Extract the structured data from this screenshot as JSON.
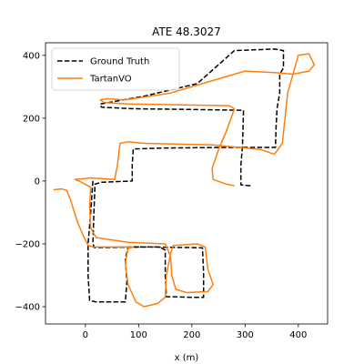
{
  "chart_data": {
    "type": "line",
    "title": "ATE 48.3027",
    "xlabel": "x (m)",
    "ylabel": "",
    "xlim": [
      -75,
      455
    ],
    "ylim": [
      -455,
      440
    ],
    "xticks": [
      0,
      100,
      200,
      300,
      400
    ],
    "yticks": [
      -400,
      -200,
      0,
      200,
      400
    ],
    "grid": false,
    "legend_position": "top-left",
    "series": [
      {
        "name": "Ground Truth",
        "color": "#000000",
        "style": "dashed",
        "points": [
          [
            310,
            -15
          ],
          [
            292,
            -12
          ],
          [
            292,
            50
          ],
          [
            295,
            110
          ],
          [
            296,
            160
          ],
          [
            297,
            225
          ],
          [
            190,
            228
          ],
          [
            90,
            230
          ],
          [
            30,
            235
          ],
          [
            28,
            245
          ],
          [
            110,
            270
          ],
          [
            210,
            310
          ],
          [
            280,
            415
          ],
          [
            355,
            420
          ],
          [
            372,
            415
          ],
          [
            372,
            360
          ],
          [
            365,
            340
          ],
          [
            365,
            280
          ],
          [
            360,
            230
          ],
          [
            358,
            165
          ],
          [
            357,
            107
          ],
          [
            260,
            107
          ],
          [
            145,
            105
          ],
          [
            90,
            102
          ],
          [
            88,
            52
          ],
          [
            88,
            0
          ],
          [
            30,
            -4
          ],
          [
            18,
            -10
          ],
          [
            16,
            -100
          ],
          [
            14,
            -200
          ],
          [
            17,
            -212
          ],
          [
            120,
            -210
          ],
          [
            200,
            -212
          ],
          [
            220,
            -213
          ],
          [
            222,
            -290
          ],
          [
            222,
            -370
          ],
          [
            200,
            -370
          ],
          [
            152,
            -368
          ],
          [
            150,
            -300
          ],
          [
            150,
            -220
          ],
          [
            140,
            -210
          ],
          [
            80,
            -210
          ],
          [
            75,
            -250
          ],
          [
            78,
            -320
          ],
          [
            75,
            -385
          ],
          [
            20,
            -385
          ],
          [
            8,
            -380
          ],
          [
            5,
            -300
          ],
          [
            5,
            -200
          ],
          [
            10,
            -100
          ],
          [
            14,
            0
          ]
        ]
      },
      {
        "name": "TartanVO",
        "color": "#ff7f0e",
        "style": "solid",
        "points": [
          [
            -60,
            -28
          ],
          [
            -45,
            -25
          ],
          [
            -35,
            -30
          ],
          [
            -28,
            -60
          ],
          [
            -15,
            -130
          ],
          [
            -5,
            -170
          ],
          [
            5,
            -205
          ],
          [
            15,
            -210
          ],
          [
            90,
            -210
          ],
          [
            80,
            -215
          ],
          [
            75,
            -260
          ],
          [
            80,
            -330
          ],
          [
            95,
            -385
          ],
          [
            110,
            -400
          ],
          [
            135,
            -390
          ],
          [
            150,
            -370
          ],
          [
            152,
            -300
          ],
          [
            160,
            -230
          ],
          [
            165,
            -205
          ],
          [
            210,
            -200
          ],
          [
            225,
            -210
          ],
          [
            230,
            -280
          ],
          [
            240,
            -330
          ],
          [
            230,
            -352
          ],
          [
            190,
            -355
          ],
          [
            170,
            -345
          ],
          [
            162,
            -300
          ],
          [
            160,
            -240
          ],
          [
            150,
            -200
          ],
          [
            80,
            -195
          ],
          [
            20,
            -180
          ],
          [
            10,
            -150
          ],
          [
            8,
            -80
          ],
          [
            10,
            -20
          ],
          [
            -12,
            0
          ],
          [
            -20,
            5
          ],
          [
            10,
            10
          ],
          [
            55,
            5
          ],
          [
            60,
            50
          ],
          [
            65,
            120
          ],
          [
            80,
            125
          ],
          [
            110,
            120
          ],
          [
            240,
            115
          ],
          [
            330,
            100
          ],
          [
            355,
            85
          ],
          [
            370,
            120
          ],
          [
            380,
            280
          ],
          [
            395,
            370
          ],
          [
            400,
            400
          ],
          [
            420,
            405
          ],
          [
            430,
            370
          ],
          [
            420,
            350
          ],
          [
            390,
            340
          ],
          [
            355,
            345
          ],
          [
            300,
            350
          ],
          [
            240,
            320
          ],
          [
            160,
            280
          ],
          [
            75,
            258
          ],
          [
            40,
            262
          ],
          [
            28,
            258
          ],
          [
            35,
            250
          ],
          [
            80,
            245
          ],
          [
            270,
            240
          ],
          [
            280,
            230
          ],
          [
            265,
            160
          ],
          [
            250,
            100
          ],
          [
            238,
            40
          ],
          [
            240,
            5
          ],
          [
            265,
            -10
          ],
          [
            280,
            -15
          ]
        ]
      }
    ]
  }
}
